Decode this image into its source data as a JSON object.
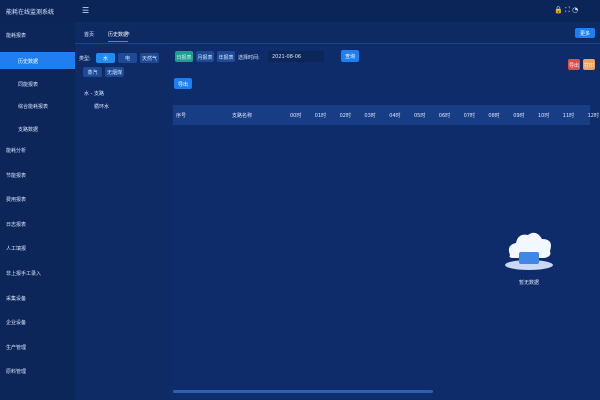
{
  "header": {
    "title": "能耗在线监测系统"
  },
  "sidebar": {
    "group": "能耗报表",
    "sub_items": [
      "历史数据",
      "同能报表",
      "综合能耗报表",
      "支路数据"
    ],
    "items": [
      "能耗分析",
      "节能报表",
      "费用报表",
      "日志报表",
      "人工填报",
      "非上报手工录入",
      "采集设备",
      "企业设备",
      "生产管理",
      "原料管理"
    ]
  },
  "tabs": [
    "首页",
    "历史数据"
  ],
  "tab_close": "×",
  "more": "更多",
  "filter": {
    "label": "类型:",
    "types": [
      "水",
      "电",
      "天然气",
      "蒸汽",
      "无烟煤"
    ]
  },
  "tree": {
    "root": "水 - 支路",
    "leaf": "循环水"
  },
  "toolbar": {
    "periods": [
      "日报表",
      "月报表",
      "年报表"
    ],
    "time_label": "选择时间:",
    "date": "2021-08-06",
    "query": "查询",
    "right_buttons": [
      "导出",
      "打印"
    ],
    "export": "导出"
  },
  "table": {
    "columns": [
      "序号",
      "支路名称",
      "00时",
      "01时",
      "02时",
      "03时",
      "04时",
      "05时",
      "06时",
      "07时",
      "08时",
      "09时",
      "10时",
      "11时",
      "12时"
    ],
    "empty": "暂无数据"
  }
}
